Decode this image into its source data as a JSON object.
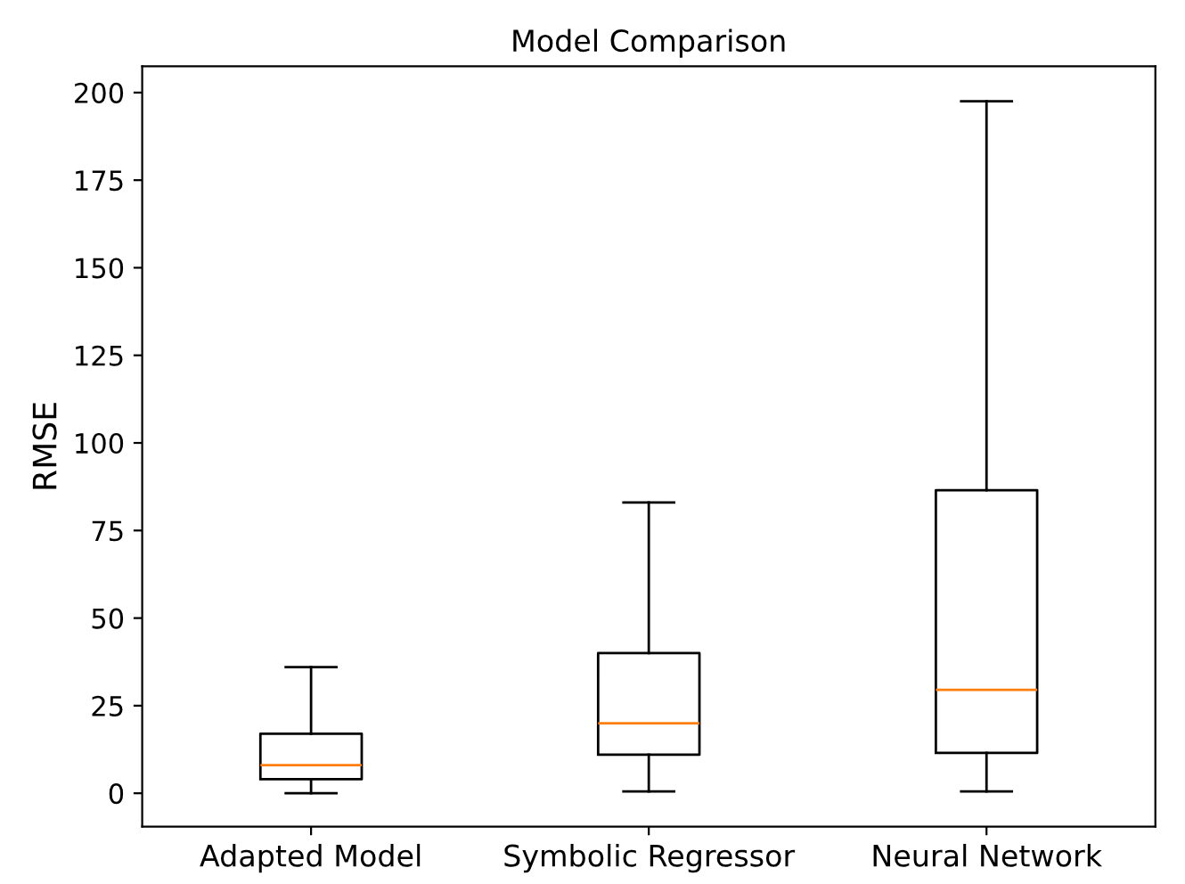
{
  "chart_data": {
    "type": "box",
    "title": "Model Comparison",
    "ylabel": "RMSE",
    "categories": [
      "Adapted Model",
      "Symbolic Regressor",
      "Neural Network"
    ],
    "boxes": [
      {
        "low": 0,
        "q1": 4,
        "median": 8,
        "q3": 17,
        "high": 36
      },
      {
        "low": 0.5,
        "q1": 11,
        "median": 20,
        "q3": 40,
        "high": 83
      },
      {
        "low": 0.5,
        "q1": 11.5,
        "median": 29.5,
        "q3": 86.5,
        "high": 197.5
      }
    ],
    "ylim": [
      -9.5,
      207.5
    ],
    "yticks": [
      0,
      25,
      50,
      75,
      100,
      125,
      150,
      175,
      200
    ],
    "grid": false
  }
}
